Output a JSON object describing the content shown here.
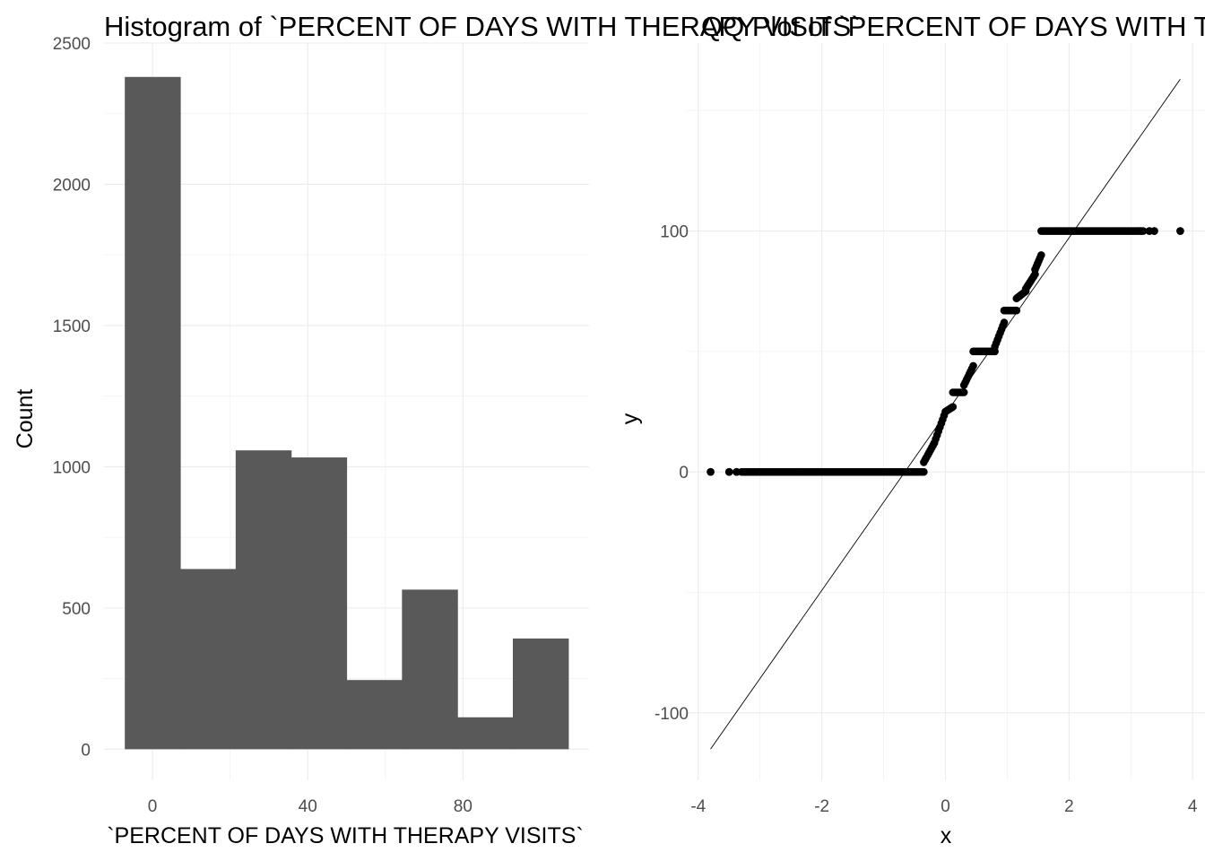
{
  "chart_data": [
    {
      "type": "bar",
      "title": "Histogram of `PERCENT OF DAYS WITH THERAPY VISITS`",
      "xlabel": "`PERCENT OF DAYS WITH THERAPY VISITS`",
      "ylabel": "Count",
      "bar_color": "#595959",
      "bins": [
        {
          "x_start": -7.14,
          "x_end": 7.14,
          "count": 2380
        },
        {
          "x_start": 7.14,
          "x_end": 21.43,
          "count": 638
        },
        {
          "x_start": 21.43,
          "x_end": 35.71,
          "count": 1058
        },
        {
          "x_start": 35.71,
          "x_end": 50.0,
          "count": 1033
        },
        {
          "x_start": 50.0,
          "x_end": 64.29,
          "count": 245
        },
        {
          "x_start": 64.29,
          "x_end": 78.57,
          "count": 565
        },
        {
          "x_start": 78.57,
          "x_end": 92.86,
          "count": 113
        },
        {
          "x_start": 92.86,
          "x_end": 107.14,
          "count": 392
        }
      ],
      "xlim": [
        -12.5,
        112.5
      ],
      "ylim": [
        -110,
        2500
      ],
      "xticks": [
        0,
        40,
        80
      ],
      "xtick_labels": [
        "0",
        "40",
        "80"
      ],
      "yticks": [
        0,
        500,
        1000,
        1500,
        2000,
        2500
      ],
      "ytick_labels": [
        "0",
        "500",
        "1000",
        "1500",
        "2000",
        "2500"
      ],
      "grid": true
    },
    {
      "type": "scatter",
      "title": "QQ Plot of `PERCENT OF DAYS WITH THERAPY VISITS`",
      "xlabel": "x",
      "ylabel": "y",
      "point_color": "#000000",
      "line_color": "#000000",
      "reference_line": {
        "x": [
          -3.8,
          3.8
        ],
        "y": [
          -115,
          163
        ]
      },
      "segments": [
        {
          "x_start": -3.8,
          "x_end": -3.8,
          "y_start": 0,
          "y_end": 0
        },
        {
          "x_start": -3.5,
          "x_end": -3.5,
          "y_start": 0,
          "y_end": 0
        },
        {
          "x_start": -3.38,
          "x_end": -3.38,
          "y_start": 0,
          "y_end": 0
        },
        {
          "x_start": -3.3,
          "x_end": -0.35,
          "y_start": 0,
          "y_end": 0
        },
        {
          "x_start": -0.35,
          "x_end": -0.18,
          "y_start": 4,
          "y_end": 12
        },
        {
          "x_start": -0.18,
          "x_end": 0.0,
          "y_start": 12,
          "y_end": 25
        },
        {
          "x_start": 0.0,
          "x_end": 0.12,
          "y_start": 25,
          "y_end": 27
        },
        {
          "x_start": 0.12,
          "x_end": 0.3,
          "y_start": 33,
          "y_end": 33
        },
        {
          "x_start": 0.3,
          "x_end": 0.45,
          "y_start": 36,
          "y_end": 44
        },
        {
          "x_start": 0.45,
          "x_end": 0.8,
          "y_start": 50,
          "y_end": 50
        },
        {
          "x_start": 0.8,
          "x_end": 0.95,
          "y_start": 52,
          "y_end": 62
        },
        {
          "x_start": 0.95,
          "x_end": 1.15,
          "y_start": 67,
          "y_end": 67
        },
        {
          "x_start": 1.15,
          "x_end": 1.3,
          "y_start": 72,
          "y_end": 75
        },
        {
          "x_start": 1.3,
          "x_end": 1.45,
          "y_start": 76,
          "y_end": 82
        },
        {
          "x_start": 1.45,
          "x_end": 1.55,
          "y_start": 84,
          "y_end": 90
        },
        {
          "x_start": 1.55,
          "x_end": 3.2,
          "y_start": 100,
          "y_end": 100
        },
        {
          "x_start": 3.3,
          "x_end": 3.3,
          "y_start": 100,
          "y_end": 100
        },
        {
          "x_start": 3.38,
          "x_end": 3.38,
          "y_start": 100,
          "y_end": 100
        },
        {
          "x_start": 3.8,
          "x_end": 3.8,
          "y_start": 100,
          "y_end": 100
        }
      ],
      "xlim": [
        -4.2,
        4.2
      ],
      "ylim": [
        -128,
        178
      ],
      "xticks": [
        -4,
        -2,
        0,
        2,
        4
      ],
      "xtick_labels": [
        "-4",
        "-2",
        "0",
        "2",
        "4"
      ],
      "yticks": [
        -100,
        0,
        100
      ],
      "ytick_labels": [
        "-100",
        "0",
        "100"
      ],
      "grid": true
    }
  ]
}
